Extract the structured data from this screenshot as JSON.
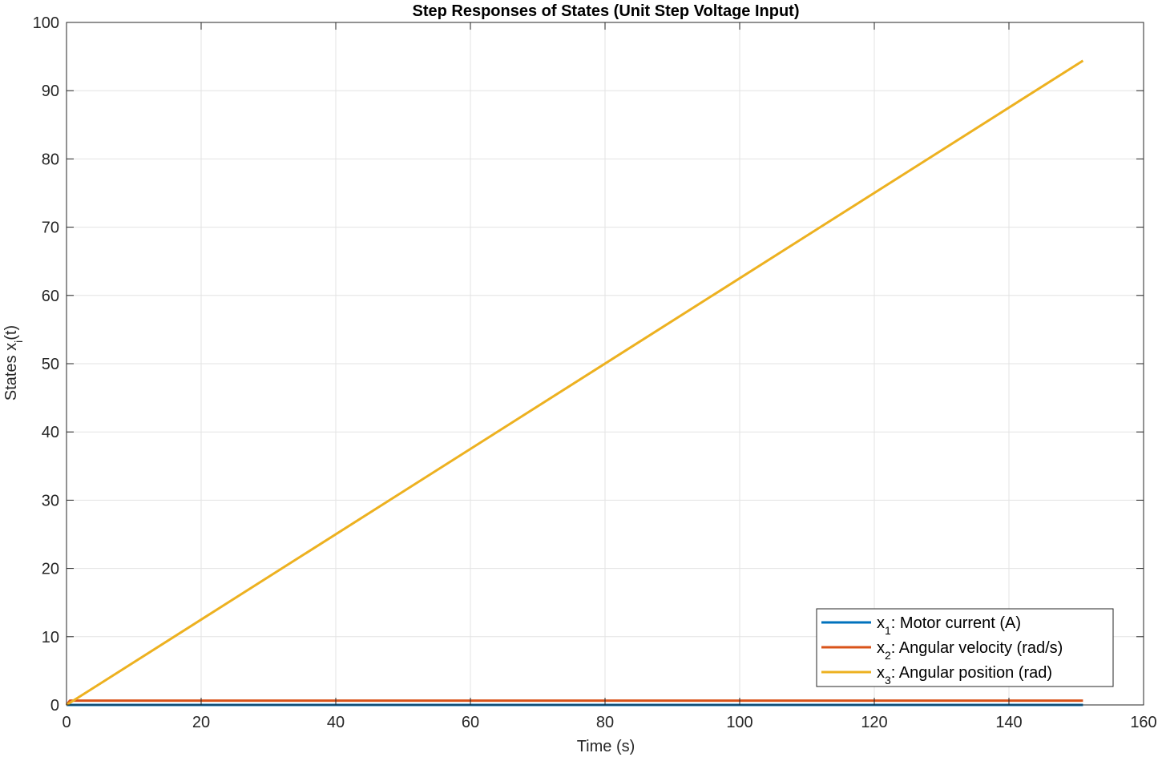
{
  "chart_data": {
    "type": "line",
    "title": "Step Responses of States (Unit Step Voltage Input)",
    "xlabel": "Time (s)",
    "ylabel": {
      "main": "States x",
      "sub": "i",
      "tail": "(t)"
    },
    "xlim": [
      0,
      160
    ],
    "ylim": [
      0,
      100
    ],
    "xticks": [
      0,
      20,
      40,
      60,
      80,
      100,
      120,
      140,
      160
    ],
    "yticks": [
      0,
      10,
      20,
      30,
      40,
      50,
      60,
      70,
      80,
      90,
      100
    ],
    "grid": true,
    "legend_location": "bottom-right",
    "series": [
      {
        "name": {
          "main": "x",
          "sub": "1",
          "tail": ":  Motor  current  (A)"
        },
        "color": "#0072BD",
        "x": [
          0,
          151
        ],
        "y": [
          0,
          0
        ]
      },
      {
        "name": {
          "main": "x",
          "sub": "2",
          "tail": ":  Angular  velocity  (rad/s)"
        },
        "color": "#D95319",
        "x": [
          0,
          0.5,
          151
        ],
        "y": [
          0,
          0.625,
          0.625
        ]
      },
      {
        "name": {
          "main": "x",
          "sub": "3",
          "tail": ":  Angular  position  (rad)"
        },
        "color": "#EDB120",
        "x": [
          0,
          151
        ],
        "y": [
          0,
          94.4
        ]
      }
    ]
  }
}
